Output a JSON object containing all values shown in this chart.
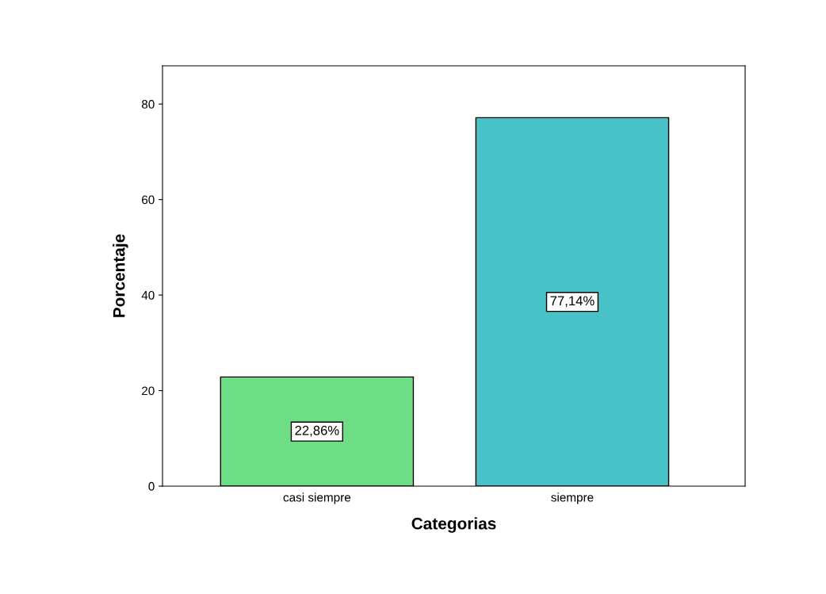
{
  "chart_data": {
    "type": "bar",
    "xlabel": "Categorias",
    "ylabel": "Porcentaje",
    "categories": [
      "casi siempre",
      "siempre"
    ],
    "values": [
      22.86,
      77.14
    ],
    "colors": [
      "#6ede86",
      "#48c2c6"
    ],
    "value_labels": [
      "22,86%",
      "77,14%"
    ],
    "ylim": [
      0,
      88
    ],
    "yticks": [
      0,
      20,
      40,
      60,
      80
    ],
    "grid": false
  }
}
